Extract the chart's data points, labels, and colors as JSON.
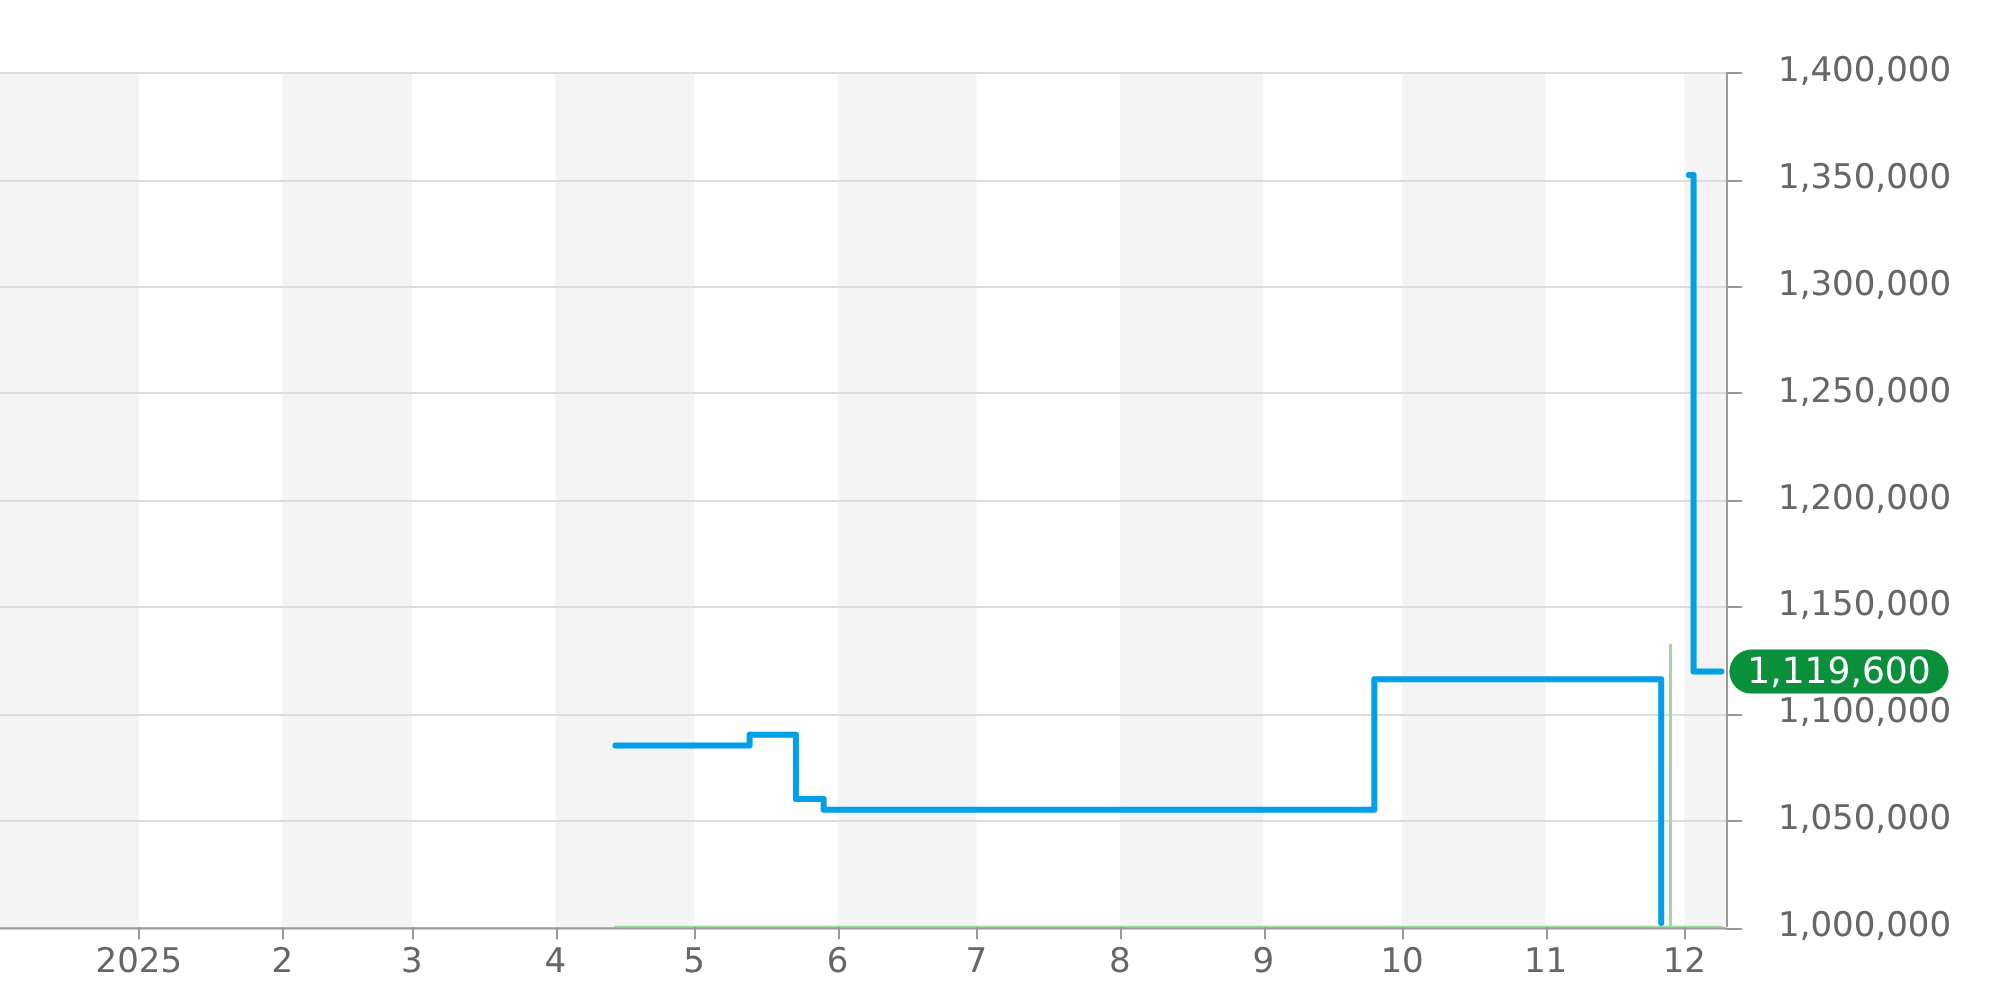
{
  "chart_data": {
    "type": "step",
    "series": [
      {
        "color": "#00a0e9",
        "x": [
          "2025-04-14",
          "2025-05-13",
          "2025-05-23",
          "2025-05-29",
          "2025-09-25",
          "2025-11-26",
          "2025-11-29",
          "2025-12-02",
          "2025-12-03",
          "2025-12-09"
        ],
        "values": [
          1085000,
          1090000,
          1060000,
          1055000,
          1116000,
          1002000,
          null,
          1352000,
          1119600,
          1119600
        ]
      },
      {
        "type": "line",
        "color": "#9ed99e",
        "x": [
          "2025-04-14",
          "2025-11-28",
          "2025-11-28",
          "2025-11-28",
          "2025-12-09"
        ],
        "values": [
          1000000,
          1000000,
          1132000,
          1000000,
          1000000
        ]
      }
    ],
    "xlim": [
      "2024-12-02",
      "2025-12-10"
    ],
    "xticks": [
      {
        "value": "2025-01-01",
        "label": "2025"
      },
      {
        "value": "2025-02-01",
        "label": "2"
      },
      {
        "value": "2025-03-01",
        "label": "3"
      },
      {
        "value": "2025-04-01",
        "label": "4"
      },
      {
        "value": "2025-05-01",
        "label": "5"
      },
      {
        "value": "2025-06-01",
        "label": "6"
      },
      {
        "value": "2025-07-01",
        "label": "7"
      },
      {
        "value": "2025-08-01",
        "label": "8"
      },
      {
        "value": "2025-09-01",
        "label": "9"
      },
      {
        "value": "2025-10-01",
        "label": "10"
      },
      {
        "value": "2025-11-01",
        "label": "11"
      },
      {
        "value": "2025-12-01",
        "label": "12"
      }
    ],
    "ylim": [
      1000000,
      1400000
    ],
    "yticks": [
      {
        "value": 1000000,
        "label": "1,000,000"
      },
      {
        "value": 1050000,
        "label": "1,050,000"
      },
      {
        "value": 1100000,
        "label": "1,100,000"
      },
      {
        "value": 1150000,
        "label": "1,150,000"
      },
      {
        "value": 1200000,
        "label": "1,200,000"
      },
      {
        "value": 1250000,
        "label": "1,250,000"
      },
      {
        "value": 1300000,
        "label": "1,300,000"
      },
      {
        "value": 1350000,
        "label": "1,350,000"
      },
      {
        "value": 1400000,
        "label": "1,400,000"
      }
    ],
    "bands": [
      {
        "axis": "x",
        "from": "2024-12-02",
        "to": "2025-01-01",
        "color": "#f4f4f4"
      },
      {
        "axis": "x",
        "from": "2025-02-01",
        "to": "2025-03-01",
        "color": "#f4f4f4"
      },
      {
        "axis": "x",
        "from": "2025-04-01",
        "to": "2025-05-01",
        "color": "#f4f4f4"
      },
      {
        "axis": "x",
        "from": "2025-06-01",
        "to": "2025-07-01",
        "color": "#f4f4f4"
      },
      {
        "axis": "x",
        "from": "2025-08-01",
        "to": "2025-09-01",
        "color": "#f4f4f4"
      },
      {
        "axis": "x",
        "from": "2025-10-01",
        "to": "2025-11-01",
        "color": "#f4f4f4"
      },
      {
        "axis": "x",
        "from": "2025-12-01",
        "to": "2025-12-10",
        "color": "#f4f4f4"
      }
    ],
    "annotations": [
      {
        "text": "1,119,600",
        "x": "2025-12-09",
        "y": 1119600
      }
    ],
    "grid": "y",
    "legend": false
  }
}
